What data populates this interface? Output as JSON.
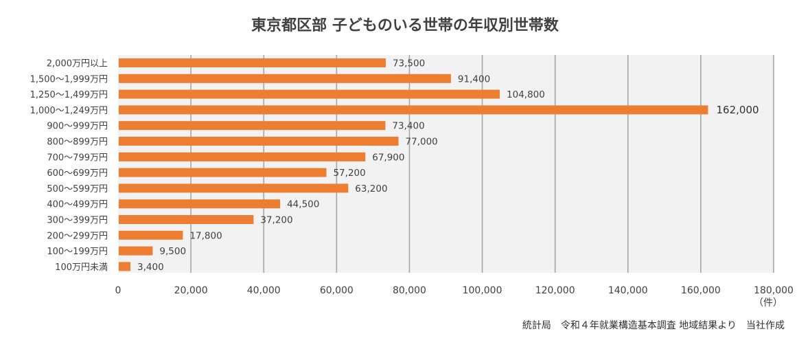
{
  "chart_data": {
    "type": "bar",
    "orientation": "horizontal",
    "title": "東京都区部 子どものいる世帯の年収別世帯数",
    "categories": [
      "2,000万円以上",
      "1,500～1,999万円",
      "1,250～1,499万円",
      "1,000～1,249万円",
      "900～999万円",
      "800～899万円",
      "700～799万円",
      "600～699万円",
      "500～599万円",
      "400～499万円",
      "300～399万円",
      "200～299万円",
      "100～199万円",
      "100万円未満"
    ],
    "values": [
      73500,
      91400,
      104800,
      162000,
      73400,
      77000,
      67900,
      57200,
      63200,
      44500,
      37200,
      17800,
      9500,
      3400
    ],
    "data_labels": [
      "73,500",
      "91,400",
      "104,800",
      "162,000",
      "73,400",
      "77,000",
      "67,900",
      "57,200",
      "63,200",
      "44,500",
      "37,200",
      "17,800",
      "9,500",
      "3,400"
    ],
    "xlim": [
      0,
      180000
    ],
    "x_ticks": [
      "0",
      "20,000",
      "40,000",
      "60,000",
      "80,000",
      "100,000",
      "120,000",
      "140,000",
      "160,000",
      "180,000"
    ],
    "x_unit": "（件）",
    "grid": true,
    "legend": "none",
    "bar_color": "#ED7D31",
    "plot_background": "#F2F2F2",
    "gridline_color": "#A6A6A6",
    "highlight_index": 3
  },
  "source_note": "統計局　令和４年就業構造基本調査 地域結果より　当社作成"
}
